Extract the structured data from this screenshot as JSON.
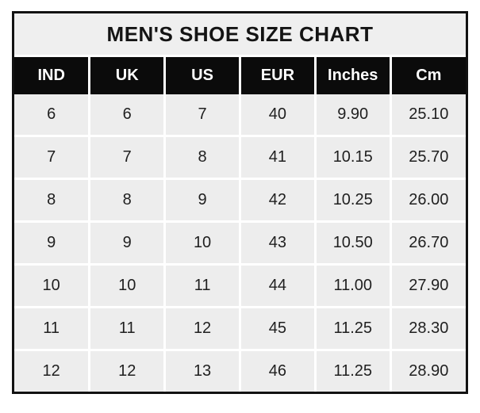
{
  "title": "MEN'S SHOE SIZE CHART",
  "table": {
    "columns": [
      "IND",
      "UK",
      "US",
      "EUR",
      "Inches",
      "Cm"
    ],
    "rows": [
      [
        "6",
        "6",
        "7",
        "40",
        "9.90",
        "25.10"
      ],
      [
        "7",
        "7",
        "8",
        "41",
        "10.15",
        "25.70"
      ],
      [
        "8",
        "8",
        "9",
        "42",
        "10.25",
        "26.00"
      ],
      [
        "9",
        "9",
        "10",
        "43",
        "10.50",
        "26.70"
      ],
      [
        "10",
        "10",
        "11",
        "44",
        "11.00",
        "27.90"
      ],
      [
        "11",
        "11",
        "12",
        "45",
        "11.25",
        "28.30"
      ],
      [
        "12",
        "12",
        "13",
        "46",
        "11.25",
        "28.90"
      ]
    ]
  },
  "colors": {
    "outer_border": "#121212",
    "title_bg": "#efefef",
    "header_bg": "#0b0b0b",
    "header_text": "#ffffff",
    "cell_bg": "#ededed",
    "cell_text": "#1f1f1f",
    "grid_line": "#ffffff",
    "page_bg": "#ffffff"
  }
}
